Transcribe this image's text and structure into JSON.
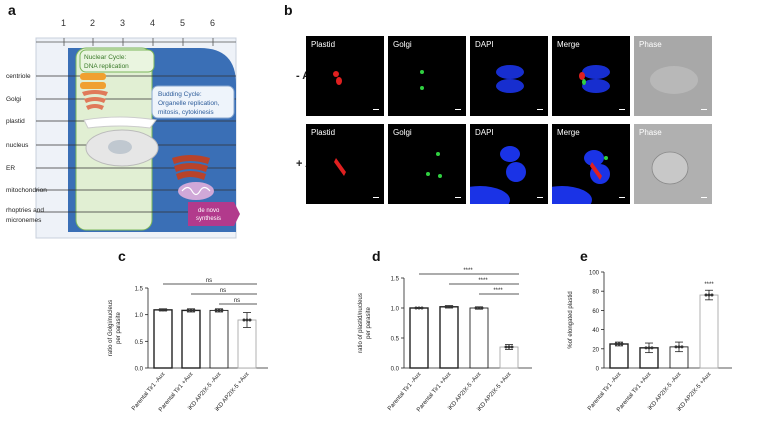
{
  "panels": {
    "a": "a",
    "b": "b",
    "c": "c",
    "d": "d",
    "e": "e"
  },
  "panel_a": {
    "columns": [
      "1",
      "2",
      "3",
      "4",
      "5",
      "6"
    ],
    "rows": [
      "centriole",
      "Golgi",
      "plastid",
      "nucleus",
      "ER",
      "mitochondrion",
      "rhoptries and\nmicronemes"
    ],
    "nuclear_cycle": "Nuclear Cycle:\nDNA replication",
    "budding_cycle": "Budding Cycle:\nOrganelle replication,\nmitosis, cytokinesis",
    "de_novo": "de novo\nsynthesis"
  },
  "panel_b": {
    "channels": [
      "Plastid",
      "Golgi",
      "DAPI",
      "Merge",
      "Phase"
    ],
    "conditions": [
      "- Aux",
      "+ Aux"
    ]
  },
  "chart_data": [
    {
      "type": "bar",
      "panel": "c",
      "categories": [
        "Parental Tir1 -Aux",
        "Parental Tir1 +Aux",
        "iKD AP2IX-5 -Aux",
        "iKD AP2IX-5 +Aux"
      ],
      "values": [
        1.09,
        1.08,
        1.08,
        0.9
      ],
      "errors": [
        0.02,
        0.03,
        0.03,
        0.14
      ],
      "ylabel": "ratio of Golgi/nucleus\nper parasite",
      "ylim": [
        0,
        1.5
      ],
      "yticks": [
        "0.0",
        "0.5",
        "1.0",
        "1.5"
      ],
      "significance": [
        "ns",
        "ns",
        "ns"
      ]
    },
    {
      "type": "bar",
      "panel": "d",
      "categories": [
        "Parental Tir1 -Aux",
        "Parental Tir1 +Aux",
        "iKD AP2IX-5 -Aux",
        "iKD AP2IX-5 +Aux"
      ],
      "values": [
        1.0,
        1.02,
        1.0,
        0.35
      ],
      "errors": [
        0.01,
        0.02,
        0.02,
        0.04
      ],
      "ylabel": "ratio of plastid/nucleus\nper parasite",
      "ylim": [
        0,
        1.5
      ],
      "yticks": [
        "0.0",
        "0.5",
        "1.0",
        "1.5"
      ],
      "significance": [
        "****",
        "****",
        "****"
      ]
    },
    {
      "type": "bar",
      "panel": "e",
      "categories": [
        "Parental Tir1 -Aux",
        "Parental Tir1 +Aux",
        "iKD AP2IX-5 -Aux",
        "iKD AP2IX-5 +Aux"
      ],
      "values": [
        25,
        21,
        22,
        76
      ],
      "errors": [
        2,
        5,
        5,
        5
      ],
      "ylabel": "%of elongated plastid",
      "ylim": [
        0,
        100
      ],
      "yticks": [
        "0",
        "20",
        "40",
        "60",
        "80",
        "100"
      ],
      "significance": [
        "****"
      ]
    }
  ],
  "colors": {
    "blue": "#3a6fb6",
    "green_box": "#e1efd3",
    "plastid_red": "#e02020",
    "golgi_green": "#30d040",
    "dapi_blue": "#1a33e6"
  }
}
